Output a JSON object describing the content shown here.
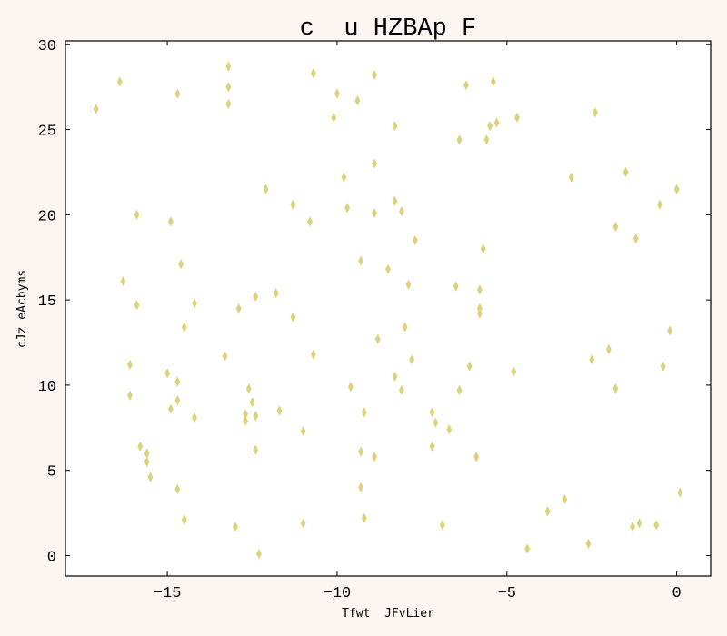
{
  "chart_data": {
    "type": "scatter",
    "title": "c  u HZBAp F",
    "xlabel": "Tfwt  JFvLier",
    "ylabel": "cJz eAcbyms",
    "xlim": [
      -18,
      1
    ],
    "ylim": [
      -1.2,
      30.2
    ],
    "xticks": [
      -15,
      -10,
      -5,
      0
    ],
    "xtick_labels": [
      "−15",
      "−10",
      "−5",
      "0"
    ],
    "yticks": [
      0,
      5,
      10,
      15,
      20,
      25,
      30
    ],
    "ytick_labels": [
      "0",
      "5",
      "10",
      "15",
      "20",
      "25",
      "30"
    ],
    "grid": false,
    "marker": "thin_diamond",
    "color": "#dcd27a",
    "points": [
      [
        -17.1,
        26.2
      ],
      [
        -16.4,
        27.8
      ],
      [
        -16.3,
        16.1
      ],
      [
        -16.1,
        11.2
      ],
      [
        -16.1,
        9.4
      ],
      [
        -15.9,
        20.0
      ],
      [
        -15.9,
        14.7
      ],
      [
        -15.8,
        6.4
      ],
      [
        -15.6,
        6.0
      ],
      [
        -15.6,
        5.5
      ],
      [
        -15.5,
        4.6
      ],
      [
        -15.0,
        10.7
      ],
      [
        -14.9,
        8.6
      ],
      [
        -14.9,
        19.6
      ],
      [
        -14.7,
        9.1
      ],
      [
        -14.7,
        10.2
      ],
      [
        -14.7,
        27.1
      ],
      [
        -14.7,
        3.9
      ],
      [
        -14.6,
        17.1
      ],
      [
        -14.5,
        13.4
      ],
      [
        -14.5,
        2.1
      ],
      [
        -14.2,
        14.8
      ],
      [
        -14.2,
        8.1
      ],
      [
        -13.3,
        11.7
      ],
      [
        -13.2,
        28.7
      ],
      [
        -13.2,
        27.5
      ],
      [
        -13.2,
        26.5
      ],
      [
        -13.0,
        1.7
      ],
      [
        -12.9,
        14.5
      ],
      [
        -12.7,
        7.9
      ],
      [
        -12.7,
        8.3
      ],
      [
        -12.6,
        9.8
      ],
      [
        -12.5,
        9.0
      ],
      [
        -12.4,
        6.2
      ],
      [
        -12.4,
        8.2
      ],
      [
        -12.4,
        15.2
      ],
      [
        -12.3,
        0.1
      ],
      [
        -12.1,
        21.5
      ],
      [
        -11.8,
        15.4
      ],
      [
        -11.7,
        8.5
      ],
      [
        -11.3,
        14.0
      ],
      [
        -11.3,
        20.6
      ],
      [
        -11.0,
        7.3
      ],
      [
        -11.0,
        1.9
      ],
      [
        -10.8,
        19.6
      ],
      [
        -10.7,
        28.3
      ],
      [
        -10.7,
        11.8
      ],
      [
        -10.1,
        25.7
      ],
      [
        -10.0,
        27.1
      ],
      [
        -9.8,
        22.2
      ],
      [
        -9.7,
        20.4
      ],
      [
        -9.6,
        9.9
      ],
      [
        -9.4,
        26.7
      ],
      [
        -9.3,
        17.3
      ],
      [
        -9.3,
        6.1
      ],
      [
        -9.3,
        4.0
      ],
      [
        -9.2,
        8.4
      ],
      [
        -9.2,
        2.2
      ],
      [
        -8.9,
        28.2
      ],
      [
        -8.9,
        23.0
      ],
      [
        -8.9,
        20.1
      ],
      [
        -8.9,
        5.8
      ],
      [
        -8.8,
        12.7
      ],
      [
        -8.5,
        16.8
      ],
      [
        -8.3,
        25.2
      ],
      [
        -8.3,
        20.8
      ],
      [
        -8.3,
        10.5
      ],
      [
        -8.1,
        20.2
      ],
      [
        -8.1,
        9.7
      ],
      [
        -8.0,
        13.4
      ],
      [
        -7.9,
        15.9
      ],
      [
        -7.8,
        11.5
      ],
      [
        -7.7,
        18.5
      ],
      [
        -7.2,
        8.4
      ],
      [
        -7.2,
        6.4
      ],
      [
        -7.1,
        7.8
      ],
      [
        -6.9,
        1.8
      ],
      [
        -6.7,
        7.4
      ],
      [
        -6.5,
        15.8
      ],
      [
        -6.4,
        24.4
      ],
      [
        -6.4,
        9.7
      ],
      [
        -6.2,
        27.6
      ],
      [
        -6.1,
        11.1
      ],
      [
        -5.9,
        5.8
      ],
      [
        -5.8,
        15.6
      ],
      [
        -5.8,
        14.5
      ],
      [
        -5.8,
        14.2
      ],
      [
        -5.7,
        18.0
      ],
      [
        -5.6,
        24.4
      ],
      [
        -5.5,
        25.2
      ],
      [
        -5.4,
        27.8
      ],
      [
        -5.3,
        25.4
      ],
      [
        -4.8,
        10.8
      ],
      [
        -4.7,
        25.7
      ],
      [
        -4.4,
        0.4
      ],
      [
        -3.8,
        2.6
      ],
      [
        -3.3,
        3.3
      ],
      [
        -3.1,
        22.2
      ],
      [
        -2.6,
        0.7
      ],
      [
        -2.5,
        11.5
      ],
      [
        -2.4,
        26.0
      ],
      [
        -2.0,
        12.1
      ],
      [
        -1.8,
        19.3
      ],
      [
        -1.8,
        9.8
      ],
      [
        -1.5,
        22.5
      ],
      [
        -1.3,
        1.7
      ],
      [
        -1.2,
        18.6
      ],
      [
        -1.1,
        1.9
      ],
      [
        -0.6,
        1.8
      ],
      [
        -0.5,
        20.6
      ],
      [
        -0.4,
        11.1
      ],
      [
        -0.2,
        13.2
      ],
      [
        0.0,
        21.5
      ],
      [
        0.1,
        3.7
      ]
    ]
  }
}
